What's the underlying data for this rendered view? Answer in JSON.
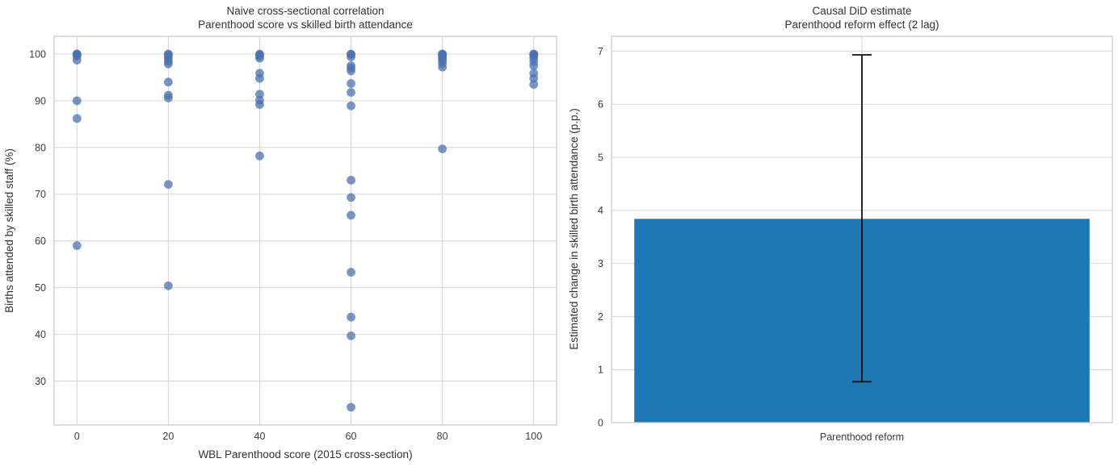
{
  "figure": {
    "background": "#ffffff",
    "grid_color": "#d4d4d4",
    "spine_color": "#cccccc",
    "text_color": "#333333"
  },
  "chart_data": [
    {
      "type": "scatter",
      "title_line1": "Naive cross-sectional correlation",
      "title_line2": "Parenthood score vs skilled birth attendance",
      "xlabel": "WBL Parenthood score (2015 cross-section)",
      "ylabel": "Births attended by skilled staff (%)",
      "xlim": [
        -5,
        105
      ],
      "ylim": [
        20.6,
        103.8
      ],
      "xticks": [
        0,
        20,
        40,
        60,
        80,
        100
      ],
      "yticks": [
        30,
        40,
        50,
        60,
        70,
        80,
        90,
        100
      ],
      "grid": true,
      "legend": "none",
      "point_color": "#4c72b0",
      "point_opacity": 0.75,
      "points": [
        [
          0,
          100
        ],
        [
          0,
          100
        ],
        [
          0,
          99.9
        ],
        [
          0,
          99.6
        ],
        [
          0,
          98.7
        ],
        [
          0,
          90.0
        ],
        [
          0,
          86.2
        ],
        [
          0,
          59.0
        ],
        [
          20,
          100
        ],
        [
          20,
          99.9
        ],
        [
          20,
          99.5
        ],
        [
          20,
          99.0
        ],
        [
          20,
          98.4
        ],
        [
          20,
          97.9
        ],
        [
          20,
          94.0
        ],
        [
          20,
          91.2
        ],
        [
          20,
          90.6
        ],
        [
          20,
          72.1
        ],
        [
          20,
          50.4
        ],
        [
          40,
          100
        ],
        [
          40,
          99.9
        ],
        [
          40,
          99.5
        ],
        [
          40,
          99.1
        ],
        [
          40,
          95.9
        ],
        [
          40,
          94.8
        ],
        [
          40,
          91.4
        ],
        [
          40,
          90.1
        ],
        [
          40,
          89.2
        ],
        [
          40,
          78.2
        ],
        [
          60,
          100
        ],
        [
          60,
          99.9
        ],
        [
          60,
          99.4
        ],
        [
          60,
          97.5
        ],
        [
          60,
          97.0
        ],
        [
          60,
          96.4
        ],
        [
          60,
          93.7
        ],
        [
          60,
          91.8
        ],
        [
          60,
          88.9
        ],
        [
          60,
          73.0
        ],
        [
          60,
          69.3
        ],
        [
          60,
          65.5
        ],
        [
          60,
          53.3
        ],
        [
          60,
          43.7
        ],
        [
          60,
          39.7
        ],
        [
          60,
          24.4
        ],
        [
          80,
          100
        ],
        [
          80,
          100
        ],
        [
          80,
          99.8
        ],
        [
          80,
          99.5
        ],
        [
          80,
          99.1
        ],
        [
          80,
          98.6
        ],
        [
          80,
          98.0
        ],
        [
          80,
          97.2
        ],
        [
          80,
          79.7
        ],
        [
          100,
          100
        ],
        [
          100,
          100
        ],
        [
          100,
          99.7
        ],
        [
          100,
          99.2
        ],
        [
          100,
          98.4
        ],
        [
          100,
          97.5
        ],
        [
          100,
          95.9
        ],
        [
          100,
          94.8
        ],
        [
          100,
          93.5
        ]
      ]
    },
    {
      "type": "bar",
      "title_line1": "Causal DiD estimate",
      "title_line2": "Parenthood reform effect (2 lag)",
      "ylabel": "Estimated change in skilled birth attendance (p.p.)",
      "xlabel": "",
      "categories": [
        "Parenthood reform"
      ],
      "values": [
        3.84
      ],
      "error_low": [
        0.77
      ],
      "error_high": [
        6.93
      ],
      "ylim": [
        0,
        7.28
      ],
      "yticks": [
        0,
        1,
        2,
        3,
        4,
        5,
        6,
        7
      ],
      "grid": true,
      "legend": "none",
      "bar_color": "#1f77b4",
      "error_color": "#0d0d0d"
    }
  ]
}
